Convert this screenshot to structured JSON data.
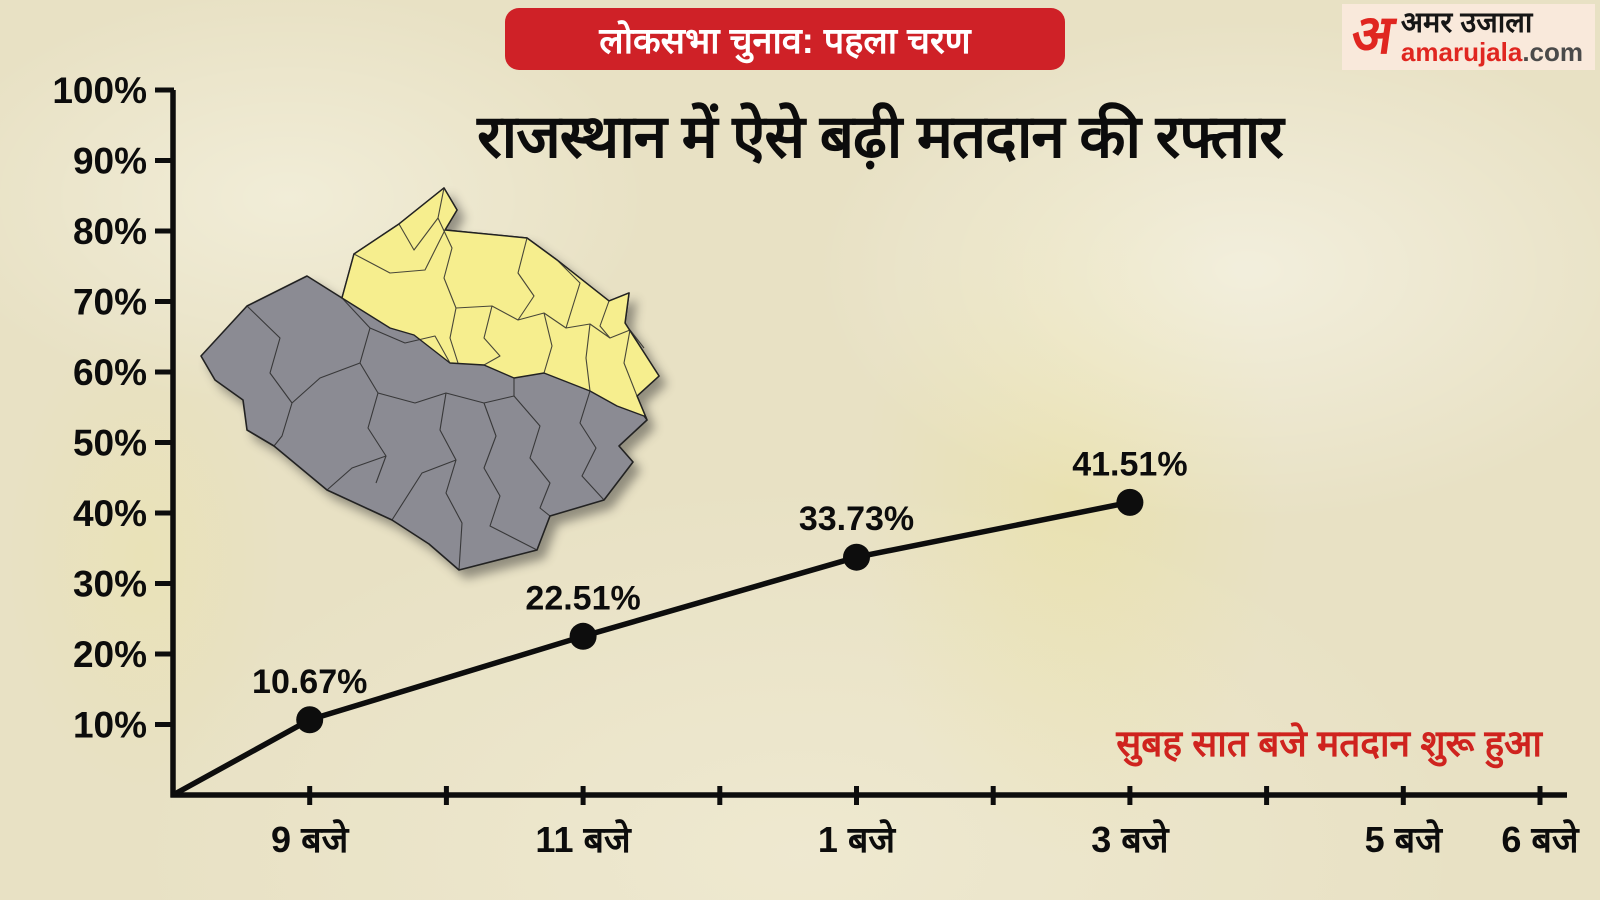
{
  "page": {
    "background": "#e8e1c4"
  },
  "header": {
    "badge": "लोकसभा चुनाव: पहला चरण",
    "badge_bg": "#cf2127",
    "title": "राजस्थान में ऐसे बढ़ी मतदान की रफ्तार"
  },
  "logo": {
    "mark": "अ",
    "mark_color": "#e02620",
    "box_bg": "#f9e9db",
    "name_devanagari": "अमर उजाला",
    "domain": "amarujala",
    "domain_color": "#e02620",
    "domain_suffix": ".com"
  },
  "map": {
    "region_yellow": "#f6ee8e",
    "region_grey": "#8b8b93",
    "border_color": "#222222",
    "legend_note": "rajasthan-districts-map"
  },
  "chart_data": {
    "type": "line",
    "title": "राजस्थान में ऐसे बढ़ी मतदान की रफ्तार",
    "ylabel": "",
    "xlabel": "",
    "ylim": [
      0,
      100
    ],
    "grid": false,
    "axis_color": "#0d0d0d",
    "y_ticks": [
      100,
      90,
      80,
      70,
      60,
      50,
      40,
      30,
      20,
      10
    ],
    "y_tick_suffix": "%",
    "x_tick_count": 10,
    "x_tick_labels": [
      {
        "index": 1,
        "label": "9 बजे"
      },
      {
        "index": 3,
        "label": "11 बजे"
      },
      {
        "index": 5,
        "label": "1 बजे"
      },
      {
        "index": 7,
        "label": "3 बजे"
      },
      {
        "index": 9,
        "label": "5 बजे"
      },
      {
        "index": 10,
        "label": "6 बजे"
      }
    ],
    "line_starts_at_origin": true,
    "points": [
      {
        "tick_index": 1,
        "x_label": "9 बजे",
        "value": 10.67,
        "value_label": "10.67%"
      },
      {
        "tick_index": 3,
        "x_label": "11 बजे",
        "value": 22.51,
        "value_label": "22.51%"
      },
      {
        "tick_index": 5,
        "x_label": "1 बजे",
        "value": 33.73,
        "value_label": "33.73%"
      },
      {
        "tick_index": 7,
        "x_label": "3 बजे",
        "value": 41.51,
        "value_label": "41.51%"
      }
    ],
    "annotation": {
      "text": "सुबह सात बजे मतदान शुरू हुआ",
      "color": "#cf231e"
    }
  }
}
